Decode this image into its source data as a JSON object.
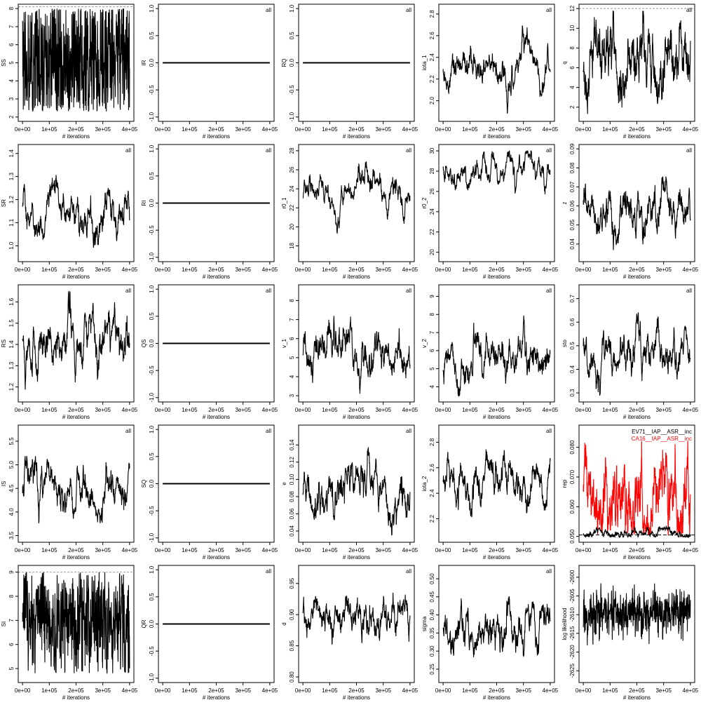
{
  "chart_data": [
    {
      "type": "line",
      "ylabel": "SS",
      "xlabel": "# iterations",
      "ylim": [
        2,
        8
      ],
      "yticks": [
        2,
        3,
        4,
        5,
        6,
        7,
        8
      ],
      "yticklabels": [
        "2",
        "3",
        "4",
        "5",
        "6",
        "7",
        "8"
      ],
      "xlim": [
        0,
        400000
      ],
      "xticks": [
        0,
        100000,
        200000,
        300000,
        400000
      ],
      "xticklabels": [
        "0e+00",
        "1e+05",
        "2e+05",
        "3e+05",
        "4e+05"
      ],
      "trace": {
        "mean": 5.2,
        "sd": 1.9,
        "lo": 2.3,
        "hi": 8.0,
        "ac": 0.3
      },
      "prior_bound": 8.1
    },
    {
      "type": "line",
      "ylabel": "IR",
      "xlabel": "# iterations",
      "ylim": [
        -1,
        1
      ],
      "yticks": [
        -1,
        -0.5,
        0,
        0.5,
        1
      ],
      "yticklabels": [
        "-1.0",
        "-0.5",
        "0.0",
        "0.5",
        "1.0"
      ],
      "xlim": [
        0,
        400000
      ],
      "xticks": [
        0,
        100000,
        200000,
        300000,
        400000
      ],
      "xticklabels": [
        "0e+00",
        "1e+05",
        "2e+05",
        "3e+05",
        "4e+05"
      ],
      "constant": 0,
      "tag": "all"
    },
    {
      "type": "line",
      "ylabel": "RQ",
      "xlabel": "# iterations",
      "ylim": [
        -1,
        1
      ],
      "yticks": [
        -1,
        -0.5,
        0,
        0.5,
        1
      ],
      "yticklabels": [
        "-1.0",
        "-0.5",
        "0.0",
        "0.5",
        "1.0"
      ],
      "xlim": [
        0,
        400000
      ],
      "xticks": [
        0,
        100000,
        200000,
        300000,
        400000
      ],
      "xticklabels": [
        "0e+00",
        "1e+05",
        "2e+05",
        "3e+05",
        "4e+05"
      ],
      "constant": 0,
      "tag": "all"
    },
    {
      "type": "line",
      "ylabel": "iota_1",
      "xlabel": "# iterations",
      "ylim": [
        1.85,
        2.85
      ],
      "yticks": [
        2.0,
        2.2,
        2.4,
        2.6,
        2.8
      ],
      "yticklabels": [
        "2.0",
        "2.2",
        "2.4",
        "2.6",
        "2.8"
      ],
      "xlim": [
        0,
        400000
      ],
      "xticks": [
        0,
        100000,
        200000,
        300000,
        400000
      ],
      "xticklabels": [
        "0e+00",
        "1e+05",
        "2e+05",
        "3e+05",
        "4e+05"
      ],
      "trace": {
        "mean": 2.3,
        "sd": 0.13,
        "lo": 1.88,
        "hi": 2.8,
        "ac": 0.97
      },
      "tag": "all"
    },
    {
      "type": "line",
      "ylabel": "q",
      "xlabel": "# iterations",
      "ylim": [
        1,
        12
      ],
      "yticks": [
        2,
        4,
        6,
        8,
        10,
        12
      ],
      "yticklabels": [
        "2",
        "4",
        "6",
        "8",
        "10",
        "12"
      ],
      "xlim": [
        0,
        400000
      ],
      "xticks": [
        0,
        100000,
        200000,
        300000,
        400000
      ],
      "xticklabels": [
        "0e+00",
        "1e+05",
        "2e+05",
        "3e+05",
        "4e+05"
      ],
      "trace": {
        "mean": 6.5,
        "sd": 2.0,
        "lo": 1.3,
        "hi": 11.8,
        "ac": 0.9
      },
      "tag": "all",
      "prior_bound": 12
    },
    {
      "type": "line",
      "ylabel": "SR",
      "xlabel": "# iterations",
      "ylim": [
        0.95,
        1.42
      ],
      "yticks": [
        1.0,
        1.1,
        1.2,
        1.3,
        1.4
      ],
      "yticklabels": [
        "1.0",
        "1.1",
        "1.2",
        "1.3",
        "1.4"
      ],
      "xlim": [
        0,
        400000
      ],
      "xticks": [
        0,
        100000,
        200000,
        300000,
        400000
      ],
      "xticklabels": [
        "0e+00",
        "1e+05",
        "2e+05",
        "3e+05",
        "4e+05"
      ],
      "trace": {
        "mean": 1.15,
        "sd": 0.06,
        "lo": 0.96,
        "hi": 1.42,
        "ac": 0.95
      },
      "tag": "all"
    },
    {
      "type": "line",
      "ylabel": "RI",
      "xlabel": "# iterations",
      "ylim": [
        -1,
        1
      ],
      "yticks": [
        -1,
        -0.5,
        0,
        0.5,
        1
      ],
      "yticklabels": [
        "-1.0",
        "-0.5",
        "0.0",
        "0.5",
        "1.0"
      ],
      "xlim": [
        0,
        400000
      ],
      "xticks": [
        0,
        100000,
        200000,
        300000,
        400000
      ],
      "xticklabels": [
        "0e+00",
        "1e+05",
        "2e+05",
        "3e+05",
        "4e+05"
      ],
      "constant": 0,
      "tag": "all"
    },
    {
      "type": "line",
      "ylabel": "r0_1",
      "xlabel": "# iterations",
      "ylim": [
        16.8,
        28.2
      ],
      "yticks": [
        18,
        20,
        22,
        24,
        26,
        28
      ],
      "yticklabels": [
        "18",
        "20",
        "22",
        "24",
        "26",
        "28"
      ],
      "xlim": [
        0,
        400000
      ],
      "xticks": [
        0,
        100000,
        200000,
        300000,
        400000
      ],
      "xticklabels": [
        "0e+00",
        "1e+05",
        "2e+05",
        "3e+05",
        "4e+05"
      ],
      "trace": {
        "mean": 23.5,
        "sd": 1.8,
        "lo": 17.0,
        "hi": 27.8,
        "ac": 0.985
      },
      "tag": "all"
    },
    {
      "type": "line",
      "ylabel": "r0_2",
      "xlabel": "# iterations",
      "ylim": [
        19.5,
        30.2
      ],
      "yticks": [
        20,
        22,
        24,
        26,
        28,
        30
      ],
      "yticklabels": [
        "20",
        "22",
        "24",
        "26",
        "28",
        "30"
      ],
      "xlim": [
        0,
        400000
      ],
      "xticks": [
        0,
        100000,
        200000,
        300000,
        400000
      ],
      "xticklabels": [
        "0e+00",
        "1e+05",
        "2e+05",
        "3e+05",
        "4e+05"
      ],
      "trace": {
        "mean": 28.3,
        "sd": 1.4,
        "lo": 19.7,
        "hi": 30.0,
        "ac": 0.98
      },
      "tag": "all"
    },
    {
      "type": "line",
      "ylabel": "z",
      "xlabel": "# iterations",
      "ylim": [
        0.033,
        0.09
      ],
      "yticks": [
        0.04,
        0.05,
        0.06,
        0.07,
        0.08,
        0.09
      ],
      "yticklabels": [
        "0.04",
        "0.05",
        "0.06",
        "0.07",
        "0.08",
        "0.09"
      ],
      "xlim": [
        0,
        400000
      ],
      "xticks": [
        0,
        100000,
        200000,
        300000,
        400000
      ],
      "xticklabels": [
        "0e+00",
        "1e+05",
        "2e+05",
        "3e+05",
        "4e+05"
      ],
      "trace": {
        "mean": 0.06,
        "sd": 0.008,
        "lo": 0.035,
        "hi": 0.088,
        "ac": 0.95
      },
      "tag": "all"
    },
    {
      "type": "line",
      "ylabel": "RS",
      "xlabel": "# iterations",
      "ylim": [
        1.15,
        1.66
      ],
      "yticks": [
        1.2,
        1.3,
        1.4,
        1.5,
        1.6
      ],
      "yticklabels": [
        "1.2",
        "1.3",
        "1.4",
        "1.5",
        "1.6"
      ],
      "xlim": [
        0,
        400000
      ],
      "xticks": [
        0,
        100000,
        200000,
        300000,
        400000
      ],
      "xticklabels": [
        "0e+00",
        "1e+05",
        "2e+05",
        "3e+05",
        "4e+05"
      ],
      "trace": {
        "mean": 1.43,
        "sd": 0.08,
        "lo": 1.17,
        "hi": 1.65,
        "ac": 0.95
      },
      "tag": "all"
    },
    {
      "type": "line",
      "ylabel": "QS",
      "xlabel": "# iterations",
      "ylim": [
        -1,
        1
      ],
      "yticks": [
        -1,
        -0.5,
        0,
        0.5,
        1
      ],
      "yticklabels": [
        "-1.0",
        "-0.5",
        "0.0",
        "0.5",
        "1.0"
      ],
      "xlim": [
        0,
        400000
      ],
      "xticks": [
        0,
        100000,
        200000,
        300000,
        400000
      ],
      "xticklabels": [
        "0e+00",
        "1e+05",
        "2e+05",
        "3e+05",
        "4e+05"
      ],
      "constant": 0,
      "tag": "all"
    },
    {
      "type": "line",
      "ylabel": "v_1",
      "xlabel": "# iterations",
      "ylim": [
        2.9,
        8.6
      ],
      "yticks": [
        3,
        4,
        5,
        6,
        7,
        8
      ],
      "yticklabels": [
        "3",
        "4",
        "5",
        "6",
        "7",
        "8"
      ],
      "xlim": [
        0,
        400000
      ],
      "xticks": [
        0,
        100000,
        200000,
        300000,
        400000
      ],
      "xticklabels": [
        "0e+00",
        "1e+05",
        "2e+05",
        "3e+05",
        "4e+05"
      ],
      "trace": {
        "mean": 5.3,
        "sd": 0.8,
        "lo": 3.1,
        "hi": 8.5,
        "ac": 0.95
      },
      "tag": "all"
    },
    {
      "type": "line",
      "ylabel": "v_2",
      "xlabel": "# iterations",
      "ylim": [
        3.4,
        9.4
      ],
      "yticks": [
        4,
        5,
        6,
        7,
        8,
        9
      ],
      "yticklabels": [
        "4",
        "5",
        "6",
        "7",
        "8",
        "9"
      ],
      "xlim": [
        0,
        400000
      ],
      "xticks": [
        0,
        100000,
        200000,
        300000,
        400000
      ],
      "xticklabels": [
        "0e+00",
        "1e+05",
        "2e+05",
        "3e+05",
        "4e+05"
      ],
      "trace": {
        "mean": 5.6,
        "sd": 0.8,
        "lo": 3.5,
        "hi": 9.3,
        "ac": 0.95
      },
      "tag": "all"
    },
    {
      "type": "line",
      "ylabel": "sto",
      "xlabel": "# iterations",
      "ylim": [
        0.28,
        0.74
      ],
      "yticks": [
        0.3,
        0.4,
        0.5,
        0.6,
        0.7
      ],
      "yticklabels": [
        "0.3",
        "0.4",
        "0.5",
        "0.6",
        "0.7"
      ],
      "xlim": [
        0,
        400000
      ],
      "xticks": [
        0,
        100000,
        200000,
        300000,
        400000
      ],
      "xticklabels": [
        "0e+00",
        "1e+05",
        "2e+05",
        "3e+05",
        "4e+05"
      ],
      "trace": {
        "mean": 0.48,
        "sd": 0.06,
        "lo": 0.29,
        "hi": 0.72,
        "ac": 0.95
      },
      "tag": "all"
    },
    {
      "type": "line",
      "ylabel": "IS",
      "xlabel": "# iterations",
      "ylim": [
        3.45,
        5.75
      ],
      "yticks": [
        3.5,
        4.0,
        4.5,
        5.0,
        5.5
      ],
      "yticklabels": [
        "3.5",
        "4.0",
        "4.5",
        "5.0",
        "5.5"
      ],
      "xlim": [
        0,
        400000
      ],
      "xticks": [
        0,
        100000,
        200000,
        300000,
        400000
      ],
      "xticklabels": [
        "0e+00",
        "1e+05",
        "2e+05",
        "3e+05",
        "4e+05"
      ],
      "trace": {
        "mean": 4.5,
        "sd": 0.3,
        "lo": 3.55,
        "hi": 5.7,
        "ac": 0.95
      },
      "tag": "all"
    },
    {
      "type": "line",
      "ylabel": "SQ",
      "xlabel": "# iterations",
      "ylim": [
        -1,
        1
      ],
      "yticks": [
        -1,
        -0.5,
        0,
        0.5,
        1
      ],
      "yticklabels": [
        "-1.0",
        "-0.5",
        "0.0",
        "0.5",
        "1.0"
      ],
      "xlim": [
        0,
        400000
      ],
      "xticks": [
        0,
        100000,
        200000,
        300000,
        400000
      ],
      "xticklabels": [
        "0e+00",
        "1e+05",
        "2e+05",
        "3e+05",
        "4e+05"
      ],
      "constant": 0,
      "tag": "all"
    },
    {
      "type": "line",
      "ylabel": "e",
      "xlabel": "# iterations",
      "ylim": [
        0.032,
        0.158
      ],
      "yticks": [
        0.04,
        0.06,
        0.08,
        0.1,
        0.12,
        0.14
      ],
      "yticklabels": [
        "0.04",
        "0.06",
        "0.08",
        "0.10",
        "0.12",
        "0.14"
      ],
      "xlim": [
        0,
        400000
      ],
      "xticks": [
        0,
        100000,
        200000,
        300000,
        400000
      ],
      "xticklabels": [
        "0e+00",
        "1e+05",
        "2e+05",
        "3e+05",
        "4e+05"
      ],
      "trace": {
        "mean": 0.08,
        "sd": 0.018,
        "lo": 0.035,
        "hi": 0.155,
        "ac": 0.95
      },
      "tag": "all"
    },
    {
      "type": "line",
      "ylabel": "iota_2",
      "xlabel": "# iterations",
      "ylim": [
        2.05,
        2.9
      ],
      "yticks": [
        2.2,
        2.4,
        2.6,
        2.8
      ],
      "yticklabels": [
        "2.2",
        "2.4",
        "2.6",
        "2.8"
      ],
      "xlim": [
        0,
        400000
      ],
      "xticks": [
        0,
        100000,
        200000,
        300000,
        400000
      ],
      "xticklabels": [
        "0e+00",
        "1e+05",
        "2e+05",
        "3e+05",
        "4e+05"
      ],
      "trace": {
        "mean": 2.45,
        "sd": 0.12,
        "lo": 2.1,
        "hi": 2.87,
        "ac": 0.95
      },
      "tag": "all"
    },
    {
      "type": "line",
      "ylabel": "rep",
      "xlabel": "# iterations",
      "ylim": [
        0.0495,
        0.086
      ],
      "yticks": [
        0.05,
        0.06,
        0.07,
        0.08
      ],
      "yticklabels": [
        "0.050",
        "0.060",
        "0.070",
        "0.080"
      ],
      "xlim": [
        0,
        400000
      ],
      "xticks": [
        0,
        100000,
        200000,
        300000,
        400000
      ],
      "xticklabels": [
        "0e+00",
        "1e+05",
        "2e+05",
        "3e+05",
        "4e+05"
      ],
      "series": [
        {
          "name": "EV71__IAP__ASR__inc",
          "color": "#000000",
          "trace": {
            "mean": 0.0508,
            "sd": 0.0012,
            "lo": 0.0498,
            "hi": 0.06,
            "ac": 0.95
          }
        },
        {
          "name": "CA16__IAP__ASR__inc",
          "color": "#ff0000",
          "trace": {
            "mean": 0.062,
            "sd": 0.008,
            "lo": 0.0505,
            "hi": 0.084,
            "ac": 0.9
          }
        }
      ],
      "legend": "top-right",
      "baseline": 0.0505
    },
    {
      "type": "line",
      "ylabel": "SI",
      "xlabel": "# iterations",
      "ylim": [
        4.6,
        9.1
      ],
      "yticks": [
        5,
        6,
        7,
        8,
        9
      ],
      "yticklabels": [
        "5",
        "6",
        "7",
        "8",
        "9"
      ],
      "xlim": [
        0,
        400000
      ],
      "xticks": [
        0,
        100000,
        200000,
        300000,
        400000
      ],
      "xticklabels": [
        "0e+00",
        "1e+05",
        "2e+05",
        "3e+05",
        "4e+05"
      ],
      "trace": {
        "mean": 7.0,
        "sd": 1.1,
        "lo": 4.8,
        "hi": 9.0,
        "ac": 0.4
      },
      "prior_bound": 9.0
    },
    {
      "type": "line",
      "ylabel": "QR",
      "xlabel": "# iterations",
      "ylim": [
        -1,
        1
      ],
      "yticks": [
        -1,
        -0.5,
        0,
        0.5,
        1
      ],
      "yticklabels": [
        "-1.0",
        "-0.5",
        "0.0",
        "0.5",
        "1.0"
      ],
      "xlim": [
        0,
        400000
      ],
      "xticks": [
        0,
        100000,
        200000,
        300000,
        400000
      ],
      "xticklabels": [
        "0e+00",
        "1e+05",
        "2e+05",
        "3e+05",
        "4e+05"
      ],
      "constant": 0,
      "tag": "all"
    },
    {
      "type": "line",
      "ylabel": "d",
      "xlabel": "# iterations",
      "ylim": [
        0.798,
        0.972
      ],
      "yticks": [
        0.8,
        0.85,
        0.9,
        0.95
      ],
      "yticklabels": [
        "0.80",
        "0.85",
        "0.90",
        "0.95"
      ],
      "xlim": [
        0,
        400000
      ],
      "xticks": [
        0,
        100000,
        200000,
        300000,
        400000
      ],
      "xticklabels": [
        "0e+00",
        "1e+05",
        "2e+05",
        "3e+05",
        "4e+05"
      ],
      "trace": {
        "mean": 0.89,
        "sd": 0.022,
        "lo": 0.805,
        "hi": 0.965,
        "ac": 0.95
      },
      "tag": "all"
    },
    {
      "type": "line",
      "ylabel": "sigma",
      "xlabel": "# iterations",
      "ylim": [
        0.225,
        0.525
      ],
      "yticks": [
        0.25,
        0.3,
        0.35,
        0.4,
        0.45,
        0.5
      ],
      "yticklabels": [
        "0.25",
        "0.30",
        "0.35",
        "0.40",
        "0.45",
        "0.50"
      ],
      "xlim": [
        0,
        400000
      ],
      "xticks": [
        0,
        100000,
        200000,
        300000,
        400000
      ],
      "xticklabels": [
        "0e+00",
        "1e+05",
        "2e+05",
        "3e+05",
        "4e+05"
      ],
      "trace": {
        "mean": 0.35,
        "sd": 0.04,
        "lo": 0.235,
        "hi": 0.51,
        "ac": 0.95
      },
      "tag": "all"
    },
    {
      "type": "line",
      "ylabel": "log likelihood",
      "xlabel": "# iterations",
      "ylim": [
        -2627,
        -2598
      ],
      "yticks": [
        -2625,
        -2620,
        -2615,
        -2610,
        -2605,
        -2600
      ],
      "yticklabels": [
        "-2625",
        "-2620",
        "-2615",
        "-2610",
        "-2605",
        "-2600"
      ],
      "xlim": [
        0,
        400000
      ],
      "xticks": [
        0,
        100000,
        200000,
        300000,
        400000
      ],
      "xticklabels": [
        "0e+00",
        "1e+05",
        "2e+05",
        "3e+05",
        "4e+05"
      ],
      "trace": {
        "mean": -2609.5,
        "sd": 2.8,
        "lo": -2626,
        "hi": -2600,
        "ac": 0.3
      }
    }
  ]
}
